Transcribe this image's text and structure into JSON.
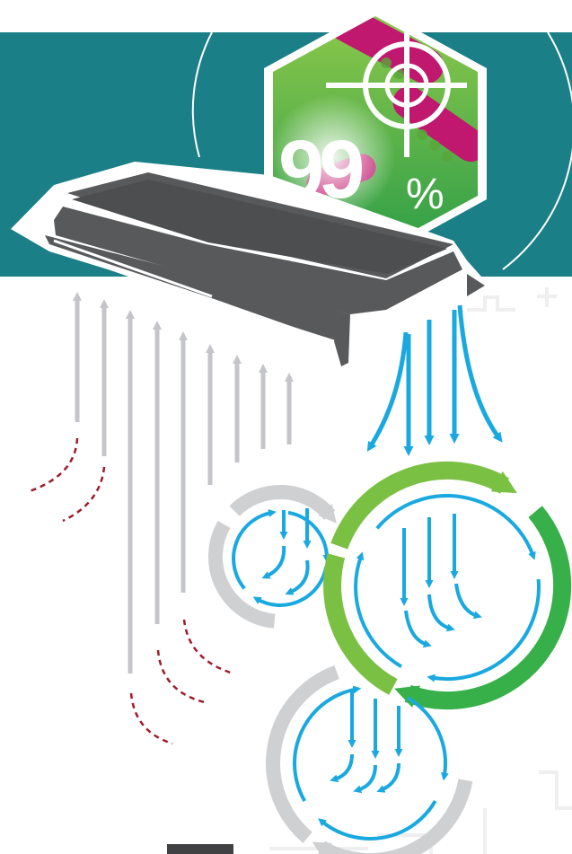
{
  "badge": {
    "value": "99",
    "unit": "%",
    "icon": "crosshair-target-icon"
  },
  "colors": {
    "band": "#1a7f86",
    "hex_green_light": "#7cc242",
    "hex_green_dark": "#2e9e48",
    "magenta": "#c0186e",
    "device": "#555759",
    "gray_arrow": "#c4c5c8",
    "blue_arrow": "#19a9e0",
    "red_dash": "#a01b2b",
    "vortex_green": "#7ac143",
    "vortex_green_dark": "#37b04a",
    "vortex_gray": "#cfd0d2",
    "bg_plus": "#eeeeef"
  },
  "icons": {
    "device": "air-purifier-unit-icon",
    "airflow_in": "intake-arrow-icon",
    "airflow_out": "outflow-arrow-icon",
    "vortex": "circulation-loop-icon",
    "particles": "particle-path-icon"
  }
}
